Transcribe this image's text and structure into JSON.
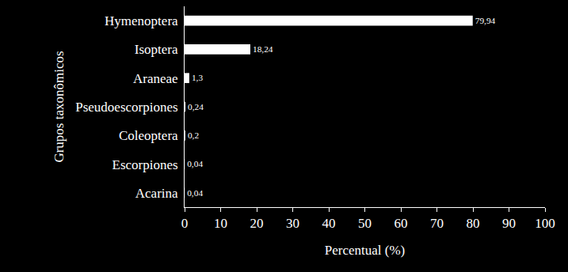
{
  "chart_data": {
    "type": "bar",
    "orientation": "horizontal",
    "categories": [
      "Hymenoptera",
      "Isoptera",
      "Araneae",
      "Pseudoescorpiones",
      "Coleoptera",
      "Escorpiones",
      "Acarina"
    ],
    "values": [
      79.94,
      18.24,
      1.3,
      0.24,
      0.2,
      0.04,
      0.04
    ],
    "value_labels": [
      "79,94",
      "18,24",
      "1,3",
      "0,24",
      "0,2",
      "0,04",
      "0,04"
    ],
    "data_labels": true,
    "color": "#ffffff",
    "x_label": "Percentual (%)",
    "y_label": "Grupos taxonômicos",
    "xlim": [
      0,
      100
    ],
    "xticks": [
      0,
      10,
      20,
      30,
      40,
      50,
      60,
      70,
      80,
      90,
      100
    ],
    "grid": false
  }
}
